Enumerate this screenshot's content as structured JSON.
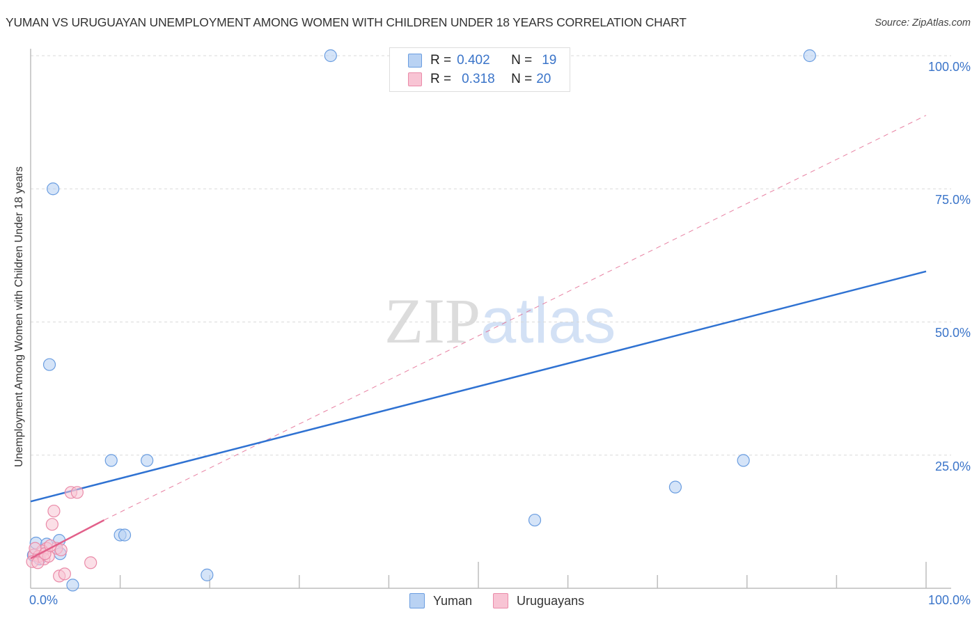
{
  "header": {
    "title": "YUMAN VS URUGUAYAN UNEMPLOYMENT AMONG WOMEN WITH CHILDREN UNDER 18 YEARS CORRELATION CHART",
    "source": "Source: ZipAtlas.com"
  },
  "axes": {
    "ylabel": "Unemployment Among Women with Children Under 18 years",
    "yticks": [
      "100.0%",
      "75.0%",
      "50.0%",
      "25.0%"
    ],
    "xticks": [
      "0.0%",
      "100.0%"
    ]
  },
  "legend_box": {
    "rows": [
      {
        "r_label": "R =",
        "r_value": "0.402",
        "n_label": "N =",
        "n_value": "19"
      },
      {
        "r_label": "R =",
        "r_value": "0.318",
        "n_label": "N =",
        "n_value": "20"
      }
    ]
  },
  "bottom_legend": {
    "items": [
      {
        "label": "Yuman"
      },
      {
        "label": "Uruguayans"
      }
    ]
  },
  "watermark": {
    "zip": "ZIP",
    "atlas": "atlas"
  },
  "colors": {
    "yuman_fill": "#b9d2f3",
    "yuman_stroke": "#6a9de0",
    "yuman_line": "#2f72d2",
    "uruguayan_fill": "#f8c4d4",
    "uruguayan_stroke": "#ea8aa8",
    "uruguayan_line": "#e2608a",
    "tick_text": "#3a74c9"
  },
  "chart_data": {
    "type": "scatter",
    "title": "YUMAN VS URUGUAYAN UNEMPLOYMENT AMONG WOMEN WITH CHILDREN UNDER 18 YEARS CORRELATION CHART",
    "xlabel": "",
    "ylabel": "Unemployment Among Women with Children Under 18 years",
    "xlim": [
      0,
      100
    ],
    "ylim": [
      0,
      100
    ],
    "grid": true,
    "legend_position": "bottom",
    "series": [
      {
        "name": "Yuman",
        "R": 0.402,
        "N": 19,
        "points": [
          [
            33.5,
            100
          ],
          [
            87.0,
            100
          ],
          [
            2.5,
            75.0
          ],
          [
            2.1,
            42.0
          ],
          [
            9.0,
            24.0
          ],
          [
            13.0,
            24.0
          ],
          [
            79.6,
            24.0
          ],
          [
            72.0,
            19.0
          ],
          [
            56.3,
            12.8
          ],
          [
            10.0,
            10.0
          ],
          [
            10.5,
            10.0
          ],
          [
            3.2,
            9.0
          ],
          [
            0.6,
            8.5
          ],
          [
            1.8,
            8.3
          ],
          [
            3.3,
            6.5
          ],
          [
            0.3,
            6.2
          ],
          [
            19.7,
            2.5
          ],
          [
            4.7,
            0.6
          ],
          [
            1.0,
            5.5
          ]
        ],
        "trend": {
          "x": [
            0,
            100
          ],
          "y": [
            16.3,
            59.5
          ],
          "style": "solid"
        }
      },
      {
        "name": "Uruguayans",
        "R": 0.318,
        "N": 20,
        "points": [
          [
            4.5,
            18.0
          ],
          [
            5.2,
            18.0
          ],
          [
            2.6,
            14.5
          ],
          [
            2.4,
            12.0
          ],
          [
            6.7,
            4.8
          ],
          [
            2.9,
            7.5
          ],
          [
            1.8,
            7.5
          ],
          [
            1.3,
            7.0
          ],
          [
            0.4,
            6.3
          ],
          [
            0.9,
            6.0
          ],
          [
            1.5,
            5.5
          ],
          [
            2.0,
            6.0
          ],
          [
            0.2,
            5.0
          ],
          [
            0.8,
            4.8
          ],
          [
            1.6,
            6.5
          ],
          [
            3.4,
            7.2
          ],
          [
            3.2,
            2.3
          ],
          [
            3.8,
            2.7
          ],
          [
            0.5,
            7.5
          ],
          [
            2.2,
            8.0
          ]
        ],
        "trend": {
          "x": [
            0,
            8.2
          ],
          "y": [
            5.6,
            12.8
          ],
          "style": "solid"
        },
        "trend_extended": {
          "x": [
            8.2,
            100
          ],
          "y": [
            12.8,
            88.8
          ],
          "style": "dashed"
        }
      }
    ]
  }
}
